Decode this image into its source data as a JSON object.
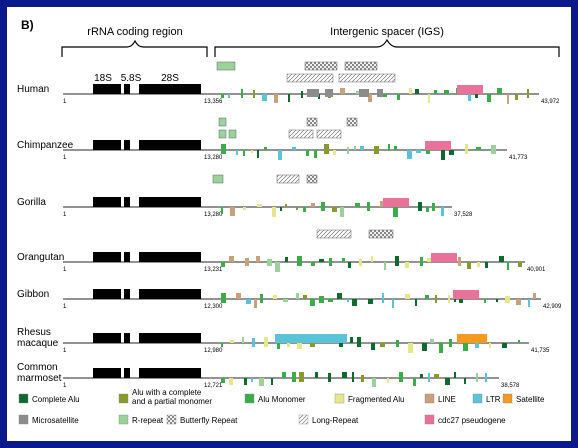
{
  "panel_label": "B)",
  "regions": {
    "coding": "rRNA coding region",
    "spacer": "Intergenic spacer (IGS)"
  },
  "gene_labels": [
    "18S",
    "5.8S",
    "28S"
  ],
  "colors": {
    "complete_alu": "#0e6a2e",
    "alu_partial": "#8a9a2a",
    "alu_monomer": "#3aad48",
    "fragmented_alu": "#e6e68a",
    "line": "#c8a07a",
    "ltr": "#5ac3d8",
    "satellite": "#f39a1f",
    "microsatellite": "#8c8c8c",
    "r_repeat": "#9bd19b",
    "cdc27": "#e8729a",
    "coding_block": "#000000",
    "backbone": "#6e6e6e",
    "panel_bg": "#ffffff",
    "frame_bg": "#0a1a8c"
  },
  "species": [
    {
      "name": "Human",
      "start": "1",
      "boundary": "13,356",
      "end": "43,972"
    },
    {
      "name": "Chimpanzee",
      "start": "1",
      "boundary": "13,280",
      "end": "41,773"
    },
    {
      "name": "Gorilla",
      "start": "1",
      "boundary": "13,280",
      "end": "37,528"
    },
    {
      "name": "Orangutan",
      "start": "1",
      "boundary": "13,231",
      "end": "40,901"
    },
    {
      "name": "Gibbon",
      "start": "1",
      "boundary": "12,300",
      "end": "42,909"
    },
    {
      "name": "Rhesus\nmacaque",
      "start": "1",
      "boundary": "12,980",
      "end": "41,735"
    },
    {
      "name": "Common\nmarmoset",
      "start": "1",
      "boundary": "12,721",
      "end": "38,578"
    }
  ],
  "legend": [
    {
      "key": "complete_alu",
      "label": "Complete Alu",
      "fill": "#0e6a2e"
    },
    {
      "key": "alu_partial",
      "label": "Alu with a complete\nand a partial monomer",
      "fill": "#8a9a2a"
    },
    {
      "key": "alu_monomer",
      "label": "Alu Monomer",
      "fill": "#3aad48"
    },
    {
      "key": "fragmented_alu",
      "label": "Fragmented Alu",
      "fill": "#e6e68a"
    },
    {
      "key": "line",
      "label": "LINE",
      "fill": "#c8a07a"
    },
    {
      "key": "ltr",
      "label": "LTR",
      "fill": "#5ac3d8"
    },
    {
      "key": "satellite",
      "label": "Satellite",
      "fill": "#f39a1f"
    },
    {
      "key": "microsatellite",
      "label": "Microsatellite",
      "fill": "#8c8c8c"
    },
    {
      "key": "r_repeat",
      "label": "R-repeat",
      "fill": "#9bd19b"
    },
    {
      "key": "butterfly",
      "label": "Butterfly Repeat",
      "fill": "pattern-crosshatch"
    },
    {
      "key": "long_repeat",
      "label": "Long-Repeat",
      "fill": "pattern-diagonal"
    },
    {
      "key": "cdc27",
      "label": "cdc27 pseudogene",
      "fill": "#e8729a"
    }
  ]
}
